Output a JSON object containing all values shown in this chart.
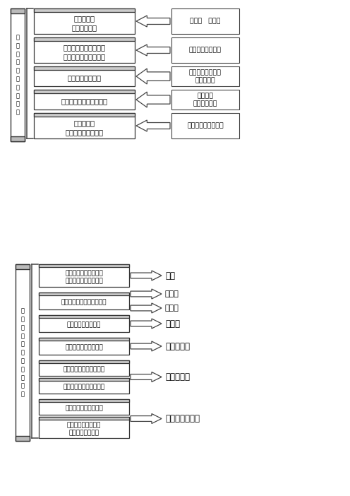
{
  "bg_color": "#ffffff",
  "s1": {
    "scroll_text": "思\n想\n政\n治\n理\n论\n考\n试\n体\n系",
    "items": [
      {
        "text": "马克思主义\n基本原理概论",
        "bold": true,
        "right": "世界观   方法论",
        "right_bold": false
      },
      {
        "text": "毛泽东思想和中国特色\n社会主义理论体系概论",
        "bold": true,
        "right": "中国化马克思主义",
        "right_bold": false
      },
      {
        "text": "中国近现代史纲要",
        "bold": true,
        "right": "中国革命建设改革\n的历史进程",
        "right_bold": false
      },
      {
        "text": "思想道德修养与法律基础",
        "bold": true,
        "right": "社会主义\n核心价值体系",
        "right_bold": false
      },
      {
        "text": "形势与政策\n当代世界经济与政治",
        "bold": true,
        "right": "国内形势与国际局势",
        "right_bold": false
      }
    ]
  },
  "s2": {
    "scroll_text": "马\n克\n思\n主\n义\n基\n本\n原\n理\n概\n论",
    "groups": [
      {
        "items": [
          "马克思主义是关于无产\n阶级和人类解放的科学"
        ],
        "arrows": [
          "绪论"
        ]
      },
      {
        "items": [
          "世界的物质性及其发展规律"
        ],
        "arrows": [
          "唯物论",
          "辩证法"
        ]
      },
      {
        "items": [
          "认识世界和改造世界"
        ],
        "arrows": [
          "认识论"
        ]
      },
      {
        "items": [
          "人类社会及其发展规律"
        ],
        "arrows": [
          "历史唯物论"
        ]
      },
      {
        "items": [
          "资本主义的形成及其本质",
          "资本主义发展的历史进程"
        ],
        "arrows": [
          "资本主义论"
        ]
      },
      {
        "items": [
          "社会主义社会及其发展",
          "共产主义是人类社会\n最崇高的社会理想"
        ],
        "arrows": [
          "科学社会主义论"
        ]
      }
    ]
  }
}
